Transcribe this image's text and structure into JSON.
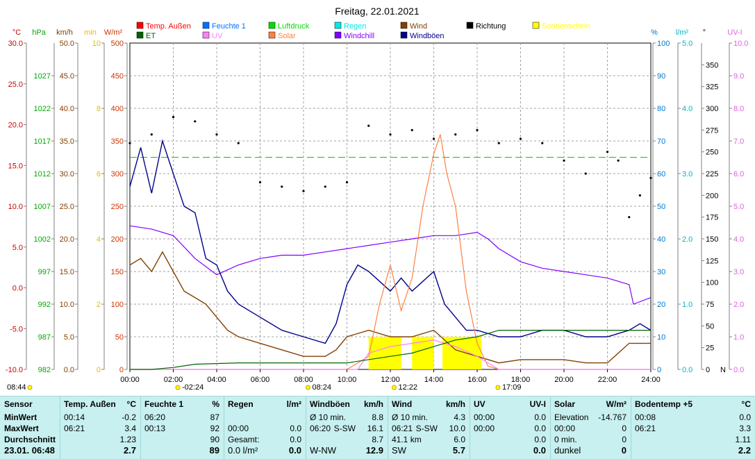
{
  "chart_data": {
    "type": "line",
    "title": "Freitag, 22.01.2021",
    "x_ticks": [
      "00:00",
      "02:00",
      "04:00",
      "06:00",
      "08:00",
      "10:00",
      "12:00",
      "14:00",
      "16:00",
      "18:00",
      "20:00",
      "22:00",
      "24:00"
    ],
    "axes": [
      {
        "unit": "°C",
        "color": "#cc0000",
        "min": -10,
        "max": 30,
        "ticks": [
          "30.0",
          "25.0",
          "20.0",
          "15.0",
          "10.0",
          "5.0",
          "0.0",
          "-5.0",
          "-10.0"
        ]
      },
      {
        "unit": "hPa",
        "color": "#00aa00",
        "min": 982,
        "max": 1032,
        "ticks": [
          "1027",
          "1022",
          "1017",
          "1012",
          "1007",
          "1002",
          "997",
          "992",
          "987",
          "982"
        ]
      },
      {
        "unit": "km/h",
        "color": "#804000",
        "min": 0,
        "max": 50,
        "ticks": [
          "50.0",
          "45.0",
          "40.0",
          "35.0",
          "30.0",
          "25.0",
          "20.0",
          "15.0",
          "10.0",
          "5.0",
          "0.0"
        ]
      },
      {
        "unit": "min",
        "color": "#e0c000",
        "min": 0,
        "max": 10,
        "ticks": [
          "10",
          "8",
          "6",
          "4",
          "2",
          "0"
        ]
      },
      {
        "unit": "W/m²",
        "color": "#cc3300",
        "min": 0,
        "max": 500,
        "ticks": [
          "500",
          "450",
          "400",
          "350",
          "300",
          "250",
          "200",
          "150",
          "100",
          "50",
          "0"
        ]
      },
      {
        "unit": "%",
        "color": "#0077cc",
        "min": 0,
        "max": 100,
        "ticks": [
          "100",
          "90",
          "80",
          "70",
          "60",
          "50",
          "40",
          "30",
          "20",
          "10",
          "0"
        ]
      },
      {
        "unit": "l/m²",
        "color": "#00b4c8",
        "min": 0,
        "max": 5,
        "ticks": [
          "5.0",
          "4.0",
          "3.0",
          "2.0",
          "1.0",
          "0.0"
        ]
      },
      {
        "unit": "°",
        "color": "#000000",
        "min": 0,
        "max": 375,
        "ticks": [
          "350",
          "325",
          "300",
          "275",
          "250",
          "225",
          "200",
          "175",
          "150",
          "125",
          "100",
          "75",
          "50",
          "25",
          "0"
        ]
      },
      {
        "unit": "UV-I",
        "color": "#e060e0",
        "min": 0,
        "max": 10,
        "ticks": [
          "10.0",
          "9.0",
          "8.0",
          "7.0",
          "6.0",
          "5.0",
          "4.0",
          "3.0",
          "2.0",
          "1.0",
          "0.0"
        ]
      }
    ],
    "legend": [
      {
        "name": "Temp. Außen",
        "color": "#ff0000"
      },
      {
        "name": "Feuchte 1",
        "color": "#0070ff"
      },
      {
        "name": "Luftdruck",
        "color": "#00dd00"
      },
      {
        "name": "Regen",
        "color": "#00e8e8"
      },
      {
        "name": "Wind",
        "color": "#804000"
      },
      {
        "name": "Richtung",
        "color": "#000000"
      },
      {
        "name": "Sonnenschein",
        "color": "#ffff00"
      },
      {
        "name": "ET",
        "color": "#006400"
      },
      {
        "name": "UV",
        "color": "#ff80ff"
      },
      {
        "name": "Solar",
        "color": "#ff8040"
      },
      {
        "name": "Windchill",
        "color": "#8000ff"
      },
      {
        "name": "Windböen",
        "color": "#00008b"
      }
    ],
    "compass_label": "N",
    "bottom_markers": [
      {
        "label": "08:44",
        "x": "00:00"
      },
      {
        "label": "-02:24",
        "x": "02:24"
      },
      {
        "label": "08:24",
        "x": "08:24"
      },
      {
        "label": "12:22",
        "x": "12:22"
      },
      {
        "label": "17:09",
        "x": "17:09"
      }
    ],
    "series": [
      {
        "name": "Windchill",
        "axis": "%",
        "points": [
          [
            0,
            44
          ],
          [
            1,
            43
          ],
          [
            2,
            41
          ],
          [
            3,
            34
          ],
          [
            4,
            29
          ],
          [
            5,
            32
          ],
          [
            6,
            34
          ],
          [
            7,
            35
          ],
          [
            8,
            35
          ],
          [
            9,
            36
          ],
          [
            10,
            37
          ],
          [
            11,
            38
          ],
          [
            12,
            39
          ],
          [
            13,
            40
          ],
          [
            14,
            41
          ],
          [
            15,
            41
          ],
          [
            16,
            42
          ],
          [
            16.5,
            40
          ],
          [
            17,
            37
          ],
          [
            18,
            33
          ],
          [
            19,
            31
          ],
          [
            20,
            30
          ],
          [
            21,
            29
          ],
          [
            22,
            28
          ],
          [
            23,
            26
          ],
          [
            23.2,
            20
          ],
          [
            24,
            22
          ]
        ]
      },
      {
        "name": "Windböen",
        "axis": "km/h",
        "points": [
          [
            0,
            28
          ],
          [
            0.5,
            34
          ],
          [
            1,
            27
          ],
          [
            1.5,
            35
          ],
          [
            2,
            30
          ],
          [
            2.5,
            25
          ],
          [
            3,
            24
          ],
          [
            3.5,
            17
          ],
          [
            4,
            16
          ],
          [
            4.5,
            12
          ],
          [
            5,
            10
          ],
          [
            6,
            8
          ],
          [
            7,
            6
          ],
          [
            8,
            5
          ],
          [
            9,
            4
          ],
          [
            9.5,
            7
          ],
          [
            10,
            13
          ],
          [
            10.5,
            16
          ],
          [
            11,
            15
          ],
          [
            12,
            12
          ],
          [
            12.5,
            14
          ],
          [
            13,
            12
          ],
          [
            14,
            15
          ],
          [
            14.5,
            10
          ],
          [
            15,
            8
          ],
          [
            15.5,
            6
          ],
          [
            16,
            6
          ],
          [
            17,
            5
          ],
          [
            18,
            5
          ],
          [
            19,
            6
          ],
          [
            20,
            6
          ],
          [
            21,
            5
          ],
          [
            22,
            5
          ],
          [
            23,
            6
          ],
          [
            23.5,
            7
          ],
          [
            24,
            6
          ]
        ]
      },
      {
        "name": "Wind",
        "axis": "km/h",
        "points": [
          [
            0,
            16
          ],
          [
            0.5,
            17
          ],
          [
            1,
            15
          ],
          [
            1.5,
            18
          ],
          [
            2,
            15
          ],
          [
            2.5,
            12
          ],
          [
            3,
            11
          ],
          [
            3.5,
            10
          ],
          [
            4,
            8
          ],
          [
            4.5,
            6
          ],
          [
            5,
            5
          ],
          [
            6,
            4
          ],
          [
            7,
            3
          ],
          [
            8,
            2
          ],
          [
            9,
            2
          ],
          [
            9.5,
            3
          ],
          [
            10,
            5
          ],
          [
            11,
            6
          ],
          [
            12,
            5
          ],
          [
            13,
            5
          ],
          [
            14,
            6
          ],
          [
            15,
            3
          ],
          [
            16,
            2
          ],
          [
            17,
            1
          ],
          [
            18,
            1.5
          ],
          [
            19,
            1.5
          ],
          [
            20,
            1.5
          ],
          [
            21,
            1
          ],
          [
            22,
            1
          ],
          [
            23,
            4
          ],
          [
            24,
            4
          ]
        ]
      },
      {
        "name": "Solar",
        "axis": "W/m²",
        "points": [
          [
            0,
            0
          ],
          [
            10,
            0
          ],
          [
            11,
            20
          ],
          [
            11.5,
            100
          ],
          [
            12,
            160
          ],
          [
            12.5,
            90
          ],
          [
            13,
            140
          ],
          [
            13.5,
            250
          ],
          [
            14,
            330
          ],
          [
            14.3,
            360
          ],
          [
            14.6,
            300
          ],
          [
            15,
            250
          ],
          [
            15.5,
            120
          ],
          [
            16,
            40
          ],
          [
            16.5,
            5
          ],
          [
            17,
            0
          ],
          [
            24,
            0
          ]
        ]
      },
      {
        "name": "UV",
        "axis": "UV-I",
        "points": [
          [
            0,
            0
          ],
          [
            10.5,
            0
          ],
          [
            11,
            0.5
          ],
          [
            12,
            0.7
          ],
          [
            13,
            0.8
          ],
          [
            14,
            0.9
          ],
          [
            15,
            0.7
          ],
          [
            16,
            0.4
          ],
          [
            17,
            0
          ],
          [
            24,
            0
          ]
        ]
      },
      {
        "name": "ET",
        "axis": "l/m²",
        "points": [
          [
            0,
            0
          ],
          [
            1,
            0
          ],
          [
            2,
            0.03
          ],
          [
            3,
            0.08
          ],
          [
            5,
            0.1
          ],
          [
            7,
            0.1
          ],
          [
            10,
            0.1
          ],
          [
            12,
            0.2
          ],
          [
            13,
            0.25
          ],
          [
            14,
            0.35
          ],
          [
            15,
            0.45
          ],
          [
            16,
            0.5
          ],
          [
            17,
            0.6
          ],
          [
            19,
            0.6
          ],
          [
            22,
            0.6
          ],
          [
            24,
            0.6
          ]
        ]
      },
      {
        "name": "Richtung",
        "axis": "°",
        "points": [
          [
            0,
            260
          ],
          [
            1,
            270
          ],
          [
            2,
            290
          ],
          [
            3,
            285
          ],
          [
            4,
            270
          ],
          [
            5,
            260
          ],
          [
            6,
            215
          ],
          [
            7,
            210
          ],
          [
            8,
            205
          ],
          [
            9,
            210
          ],
          [
            10,
            215
          ],
          [
            11,
            280
          ],
          [
            12,
            270
          ],
          [
            13,
            275
          ],
          [
            14,
            265
          ],
          [
            15,
            270
          ],
          [
            16,
            275
          ],
          [
            17,
            260
          ],
          [
            18,
            265
          ],
          [
            19,
            260
          ],
          [
            20,
            240
          ],
          [
            21,
            225
          ],
          [
            22,
            250
          ],
          [
            22.5,
            240
          ],
          [
            23,
            175
          ],
          [
            23.5,
            200
          ],
          [
            24,
            220
          ]
        ]
      }
    ],
    "reference_line": {
      "axis": "%",
      "value": 65,
      "color": "#00cc00"
    },
    "sunshine_blocks": [
      [
        11,
        12.5
      ],
      [
        13,
        14
      ],
      [
        14.4,
        16.2
      ]
    ]
  },
  "summary": {
    "columns": [
      {
        "title": "Sensor",
        "rows": [
          "MinWert",
          "MaxWert",
          "Durchschnitt",
          "23.01. 06:48"
        ]
      },
      {
        "title": "Temp. Außen",
        "unit": "°C",
        "rows": [
          [
            "00:14",
            "-0.2"
          ],
          [
            "06:21",
            "3.4"
          ],
          [
            "",
            "1.23"
          ],
          [
            "",
            "2.7"
          ]
        ]
      },
      {
        "title": "Feuchte 1",
        "unit": "%",
        "rows": [
          [
            "06:20",
            "87"
          ],
          [
            "00:13",
            "92"
          ],
          [
            "",
            "90"
          ],
          [
            "",
            "89"
          ]
        ]
      },
      {
        "title": "Regen",
        "unit": "l/m²",
        "rows": [
          [
            "",
            ""
          ],
          [
            "00:00",
            "0.0"
          ],
          [
            "Gesamt:",
            "0.0"
          ],
          [
            "0.0 l/m²",
            "0.0"
          ]
        ]
      },
      {
        "title": "Windböen",
        "unit": "km/h",
        "rows": [
          [
            "Ø 10 min.",
            "",
            "8.8"
          ],
          [
            "06:20",
            "S-SW",
            "16.1"
          ],
          [
            "",
            "",
            "8.7"
          ],
          [
            "W-NW",
            "",
            "12.9"
          ]
        ]
      },
      {
        "title": "Wind",
        "unit": "km/h",
        "rows": [
          [
            "Ø 10 min.",
            "",
            "4.3"
          ],
          [
            "06:21",
            "S-SW",
            "10.0"
          ],
          [
            "41.1 km",
            "",
            "6.0"
          ],
          [
            "SW",
            "",
            "5.7"
          ]
        ]
      },
      {
        "title": "UV",
        "unit": "UV-I",
        "rows": [
          [
            "00:00",
            "0.0"
          ],
          [
            "00:00",
            "0.0"
          ],
          [
            "",
            "0.0"
          ],
          [
            "",
            "0.0"
          ]
        ]
      },
      {
        "title": "Solar",
        "unit": "W/m²",
        "rows": [
          [
            "Elevation",
            "-14.767"
          ],
          [
            "00:00",
            "0"
          ],
          [
            "0 min.",
            "0"
          ],
          [
            "dunkel",
            "0"
          ]
        ]
      },
      {
        "title": "Bodentemp +5",
        "unit": "°C",
        "rows": [
          [
            "00:08",
            "0.0"
          ],
          [
            "06:21",
            "3.3"
          ],
          [
            "",
            "1.11"
          ],
          [
            "",
            "2.2"
          ]
        ]
      }
    ]
  }
}
